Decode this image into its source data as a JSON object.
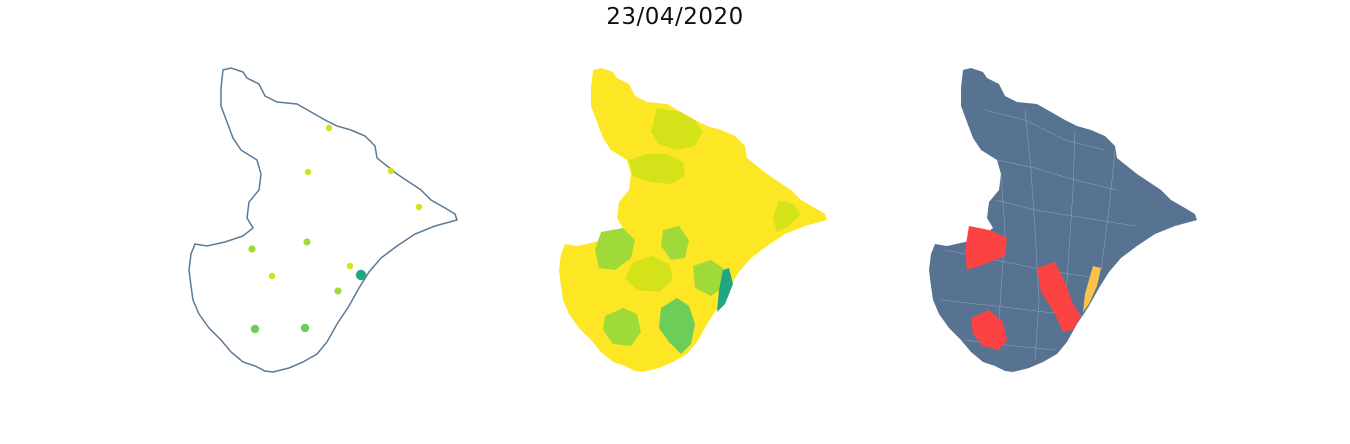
{
  "title": "23/04/2020",
  "colors": {
    "outline": "#5a7a96",
    "background": "#ffffff",
    "choropleth_base": "#fde725",
    "choropleth_light": "#d4e21a",
    "choropleth_mid": "#a0da39",
    "choropleth_green": "#6ccd59",
    "choropleth_teal": "#21a685",
    "status_base": "#587391",
    "status_red": "#fb4343",
    "status_orange": "#fbc34c",
    "border_line": "#8fa7bd"
  },
  "panels": [
    {
      "id": "bubble-map",
      "style": "outline",
      "points": [
        {
          "color": "#d4e21a",
          "r": 3.2
        },
        {
          "color": "#d4e21a",
          "r": 3.2
        },
        {
          "color": "#d4e21a",
          "r": 3.2
        },
        {
          "color": "#d4e21a",
          "r": 3.2
        },
        {
          "color": "#a0da39",
          "r": 3.6
        },
        {
          "color": "#a0da39",
          "r": 3.6
        },
        {
          "color": "#d4e21a",
          "r": 3.2
        },
        {
          "color": "#d4e21a",
          "r": 3.2
        },
        {
          "color": "#21a685",
          "r": 5.2
        },
        {
          "color": "#a0da39",
          "r": 3.6
        },
        {
          "color": "#6ccd59",
          "r": 4.2
        },
        {
          "color": "#6ccd59",
          "r": 4.2
        }
      ]
    },
    {
      "id": "choropleth-map",
      "style": "filled"
    },
    {
      "id": "status-map",
      "style": "filled-status"
    }
  ]
}
